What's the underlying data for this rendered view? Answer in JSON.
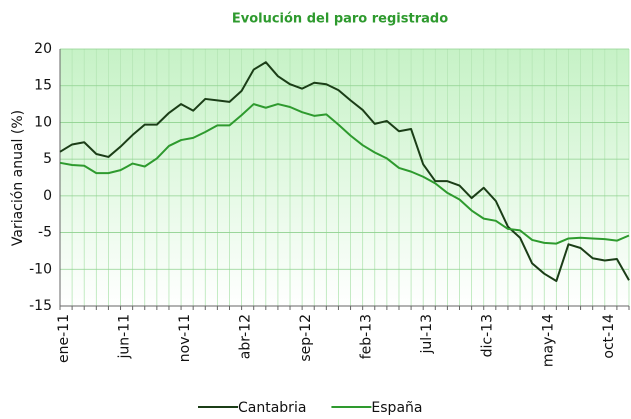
{
  "chart_data": {
    "type": "line",
    "title": "Evolución del paro registrado",
    "y_label": "Variación anual (%)",
    "categories": [
      "ene-11",
      null,
      null,
      null,
      null,
      "jun-11",
      null,
      null,
      null,
      null,
      "nov-11",
      null,
      null,
      null,
      null,
      "abr-12",
      null,
      null,
      null,
      null,
      "sep-12",
      null,
      null,
      null,
      null,
      "feb-13",
      null,
      null,
      null,
      null,
      "jul-13",
      null,
      null,
      null,
      null,
      "dic-13",
      null,
      null,
      null,
      null,
      "may-14",
      null,
      null,
      null,
      null,
      "oct-14",
      null,
      null
    ],
    "series": [
      {
        "name": "Cantabria",
        "color": "#1b3d17",
        "values": [
          6,
          7,
          7.3,
          5.7,
          5.3,
          6.7,
          8.3,
          9.7,
          9.7,
          11.3,
          12.5,
          11.6,
          13.2,
          13,
          12.8,
          14.3,
          17.2,
          18.2,
          16.3,
          15.2,
          14.6,
          15.4,
          15.2,
          14.4,
          13,
          11.7,
          9.8,
          10.2,
          8.8,
          9.1,
          4.3,
          2,
          2,
          1.4,
          -0.3,
          1.1,
          -0.7,
          -4.2,
          -5.7,
          -9.2,
          -10.6,
          -11.6,
          -6.6,
          -7.1,
          -8.5,
          -8.8,
          -8.6,
          -11.5
        ]
      },
      {
        "name": "España",
        "color": "#2e9a2e",
        "values": [
          4.5,
          4.2,
          4.1,
          3.1,
          3.1,
          3.5,
          4.4,
          4.0,
          5.1,
          6.8,
          7.6,
          7.9,
          8.7,
          9.6,
          9.6,
          11.0,
          12.5,
          12.0,
          12.5,
          12.1,
          11.4,
          10.9,
          11.1,
          9.7,
          8.2,
          6.9,
          5.9,
          5.1,
          3.8,
          3.3,
          2.6,
          1.7,
          0.4,
          -0.5,
          -2.0,
          -3.1,
          -3.4,
          -4.5,
          -4.7,
          -6.0,
          -6.4,
          -6.5,
          -5.8,
          -5.7,
          -5.8,
          -5.9,
          -6.1,
          -5.4
        ]
      }
    ],
    "ylim": [
      -15,
      20
    ],
    "yticks": [
      -15,
      -10,
      -5,
      0,
      5,
      10,
      15,
      20
    ],
    "grid": true,
    "legend": "bottom"
  }
}
